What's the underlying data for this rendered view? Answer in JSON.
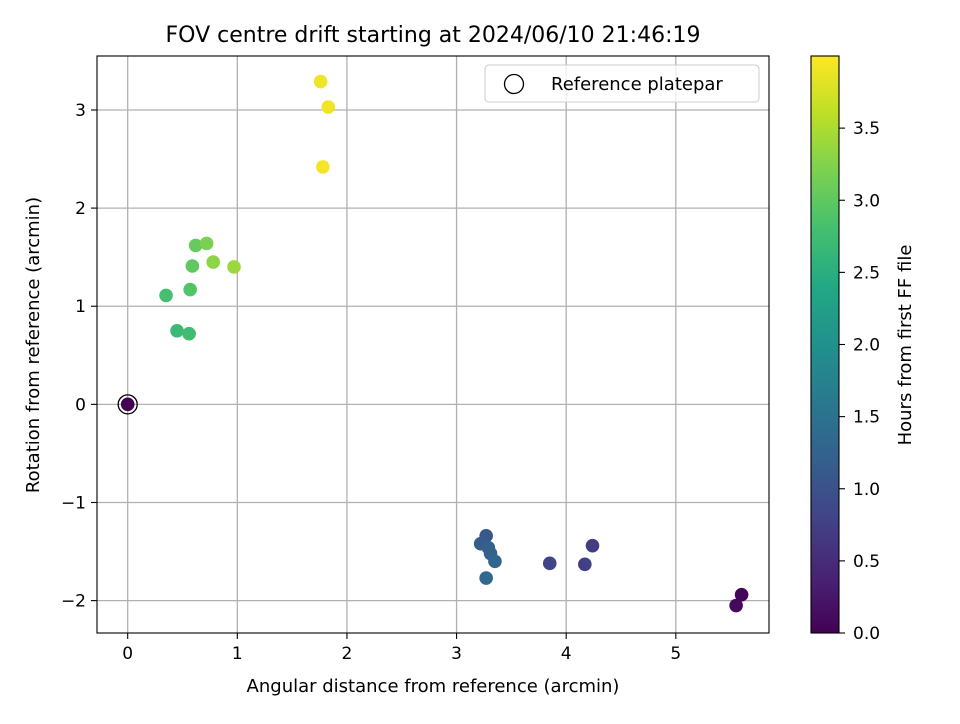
{
  "chart_data": {
    "type": "scatter",
    "title": "FOV centre drift starting at 2024/06/10 21:46:19",
    "xlabel": "Angular distance from reference (arcmin)",
    "ylabel": "Rotation from reference (arcmin)",
    "xlim": [
      -0.28,
      5.85
    ],
    "ylim": [
      -2.33,
      3.55
    ],
    "xticks": [
      0,
      1,
      2,
      3,
      4,
      5
    ],
    "yticks": [
      -2,
      -1,
      0,
      1,
      2,
      3
    ],
    "grid": true,
    "legend": {
      "position": "top-right",
      "entries": [
        "Reference platepar"
      ]
    },
    "reference_point": {
      "x": 0,
      "y": 0
    },
    "colorbar": {
      "label": "Hours from first FF file",
      "range": [
        0,
        4.0
      ],
      "ticks": [
        0.0,
        0.5,
        1.0,
        1.5,
        2.0,
        2.5,
        3.0,
        3.5
      ],
      "colormap": "viridis"
    },
    "points": [
      {
        "x": 0.0,
        "y": 0.0,
        "c": 0.0
      },
      {
        "x": 5.6,
        "y": -1.94,
        "c": 0.05
      },
      {
        "x": 5.55,
        "y": -2.05,
        "c": 0.1
      },
      {
        "x": 4.24,
        "y": -1.44,
        "c": 0.7
      },
      {
        "x": 4.17,
        "y": -1.63,
        "c": 0.75
      },
      {
        "x": 3.85,
        "y": -1.62,
        "c": 0.8
      },
      {
        "x": 3.27,
        "y": -1.34,
        "c": 1.1
      },
      {
        "x": 3.22,
        "y": -1.42,
        "c": 1.15
      },
      {
        "x": 3.29,
        "y": -1.46,
        "c": 1.2
      },
      {
        "x": 3.31,
        "y": -1.52,
        "c": 1.25
      },
      {
        "x": 3.35,
        "y": -1.6,
        "c": 1.3
      },
      {
        "x": 3.27,
        "y": -1.77,
        "c": 1.35
      },
      {
        "x": 0.45,
        "y": 0.75,
        "c": 2.7
      },
      {
        "x": 0.56,
        "y": 0.72,
        "c": 2.75
      },
      {
        "x": 0.35,
        "y": 1.11,
        "c": 2.8
      },
      {
        "x": 0.57,
        "y": 1.17,
        "c": 2.9
      },
      {
        "x": 0.59,
        "y": 1.41,
        "c": 3.0
      },
      {
        "x": 0.62,
        "y": 1.62,
        "c": 3.05
      },
      {
        "x": 0.72,
        "y": 1.64,
        "c": 3.2
      },
      {
        "x": 0.78,
        "y": 1.45,
        "c": 3.3
      },
      {
        "x": 0.97,
        "y": 1.4,
        "c": 3.4
      },
      {
        "x": 1.76,
        "y": 3.29,
        "c": 3.9
      },
      {
        "x": 1.83,
        "y": 3.03,
        "c": 3.92
      },
      {
        "x": 1.78,
        "y": 2.42,
        "c": 3.95
      }
    ]
  }
}
